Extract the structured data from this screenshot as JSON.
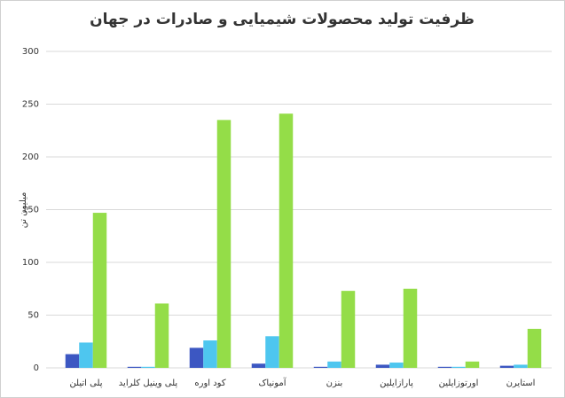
{
  "chart_data": {
    "type": "bar",
    "title": "ظرفیت تولید محصولات شیمیایی و صادرات در جهان",
    "y_label": "میلیون تن",
    "categories": [
      "پلی اتیلن",
      "پلی وینیل کلراید",
      "کود اوره",
      "آمونیاک",
      "بنزن",
      "پارازایلین",
      "اورتوزایلین",
      "استایرن"
    ],
    "series": [
      {
        "color": "#3c57c2",
        "values": [
          13,
          1,
          19,
          4,
          1,
          3,
          1,
          2
        ]
      },
      {
        "color": "#4ec6ef",
        "values": [
          24,
          1,
          26,
          30,
          6,
          5,
          1,
          3
        ]
      },
      {
        "color": "#94dd48",
        "values": [
          147,
          61,
          235,
          241,
          73,
          75,
          6,
          37
        ]
      }
    ],
    "ylim": [
      0,
      300
    ],
    "yticks": [
      0,
      50,
      100,
      150,
      200,
      250,
      300
    ],
    "grid": true
  }
}
